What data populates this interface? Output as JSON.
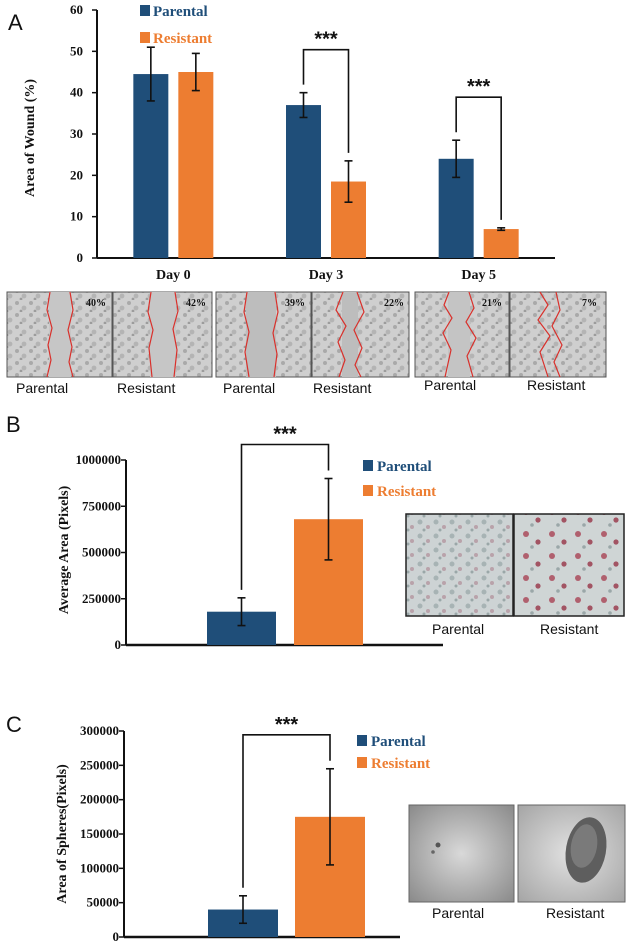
{
  "colors": {
    "parental": "#1f4e79",
    "resistant": "#ed7d31",
    "axis": "#111111",
    "wound_line": "#d9302b"
  },
  "panels": {
    "A": {
      "letter": "A",
      "legend": [
        "Parental",
        "Resistant"
      ],
      "photo_captions": [
        [
          "Parental",
          "Resistant"
        ],
        [
          "Parental",
          "Resistant"
        ],
        [
          "Parental",
          "Resistant"
        ]
      ],
      "photo_percents": [
        [
          "40%",
          "42%"
        ],
        [
          "39%",
          "22%"
        ],
        [
          "21%",
          "7%"
        ]
      ]
    },
    "B": {
      "letter": "B",
      "legend": [
        "Parental",
        "Resistant"
      ],
      "photo_captions": [
        "Parental",
        "Resistant"
      ]
    },
    "C": {
      "letter": "C",
      "legend": [
        "Parental",
        "Resistant"
      ],
      "photo_captions": [
        "Parental",
        "Resistant"
      ]
    }
  },
  "chart_data": [
    {
      "type": "bar",
      "panel": "A",
      "categories": [
        "Day 0",
        "Day 3",
        "Day 5"
      ],
      "series": [
        {
          "name": "Parental",
          "values": [
            44.5,
            37,
            24
          ],
          "errors": [
            6.5,
            3,
            4.5
          ]
        },
        {
          "name": "Resistant",
          "values": [
            45,
            18.5,
            7
          ],
          "errors": [
            4.5,
            5,
            0.3
          ]
        }
      ],
      "ylabel": "Area of Wound (%)",
      "ylim": [
        0,
        60
      ],
      "yticks": [
        0,
        10,
        20,
        30,
        40,
        50,
        60
      ],
      "significance": [
        {
          "category": "Day 3",
          "label": "***"
        },
        {
          "category": "Day 5",
          "label": "***"
        }
      ],
      "legend_position": "top-center",
      "grid": false
    },
    {
      "type": "bar",
      "panel": "B",
      "categories": [
        "Parental",
        "Resistant"
      ],
      "values": [
        180000,
        680000
      ],
      "errors": [
        75000,
        220000
      ],
      "ylabel": "Average Area (Pixels)",
      "ylim": [
        0,
        1000000
      ],
      "yticks": [
        0,
        250000,
        500000,
        750000,
        1000000
      ],
      "significance": [
        {
          "label": "***"
        }
      ],
      "legend_position": "right",
      "grid": false
    },
    {
      "type": "bar",
      "panel": "C",
      "categories": [
        "Parental",
        "Resistant"
      ],
      "values": [
        40000,
        175000
      ],
      "errors": [
        20000,
        70000
      ],
      "ylabel": "Area of Spheres(Pixels)",
      "ylim": [
        0,
        300000
      ],
      "yticks": [
        0,
        50000,
        100000,
        150000,
        200000,
        250000,
        300000
      ],
      "significance": [
        {
          "label": "***"
        }
      ],
      "legend_position": "right",
      "grid": false
    }
  ]
}
